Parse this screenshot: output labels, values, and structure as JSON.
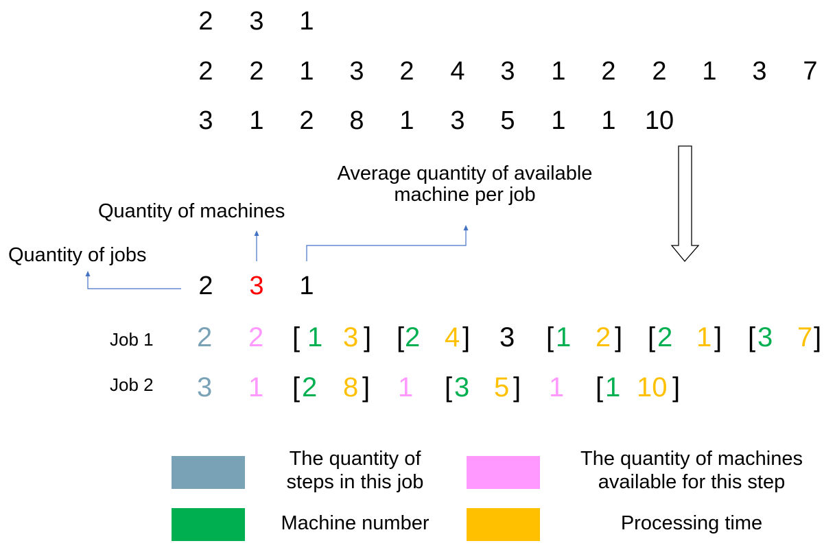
{
  "colors": {
    "steps": "#7aa2b7",
    "machines_available": "#ff99ff",
    "machine_number": "#00b050",
    "processing_time": "#ffc000",
    "highlight": "#ff0000",
    "arrow": "#4472c4"
  },
  "raw_input": {
    "line1": [
      "2",
      "3",
      "1"
    ],
    "line2": [
      "2",
      "2",
      "1",
      "3",
      "2",
      "4",
      "3",
      "1",
      "2",
      "2",
      "1",
      "3",
      "7"
    ],
    "line3": [
      "3",
      "1",
      "2",
      "8",
      "1",
      "3",
      "5",
      "1",
      "1",
      "10"
    ]
  },
  "annotations": {
    "jobs": "Quantity of jobs",
    "machines": "Quantity of machines",
    "avg_line1": "Average quantity of available",
    "avg_line2": "machine per job"
  },
  "header": [
    "2",
    "3",
    "1"
  ],
  "jobs": [
    {
      "label": "Job 1",
      "tokens": [
        {
          "t": "2",
          "c": "steps"
        },
        {
          "t": "2",
          "c": "machines_available"
        },
        {
          "t": "[",
          "c": "black"
        },
        {
          "t": "1",
          "c": "machine_number"
        },
        {
          "t": "3",
          "c": "processing_time"
        },
        {
          "t": "]",
          "c": "black"
        },
        {
          "t": "[",
          "c": "black"
        },
        {
          "t": "2",
          "c": "machine_number"
        },
        {
          "t": "4",
          "c": "processing_time"
        },
        {
          "t": "]",
          "c": "black"
        },
        {
          "t": "3",
          "c": "black"
        },
        {
          "t": "[",
          "c": "black"
        },
        {
          "t": "1",
          "c": "machine_number"
        },
        {
          "t": "2",
          "c": "processing_time"
        },
        {
          "t": "]",
          "c": "black"
        },
        {
          "t": "[",
          "c": "black"
        },
        {
          "t": "2",
          "c": "machine_number"
        },
        {
          "t": "1",
          "c": "processing_time"
        },
        {
          "t": "]",
          "c": "black"
        },
        {
          "t": "[",
          "c": "black"
        },
        {
          "t": "3",
          "c": "machine_number"
        },
        {
          "t": "7",
          "c": "processing_time"
        },
        {
          "t": "]",
          "c": "black"
        }
      ]
    },
    {
      "label": "Job 2",
      "tokens": [
        {
          "t": "3",
          "c": "steps"
        },
        {
          "t": "1",
          "c": "machines_available"
        },
        {
          "t": "[",
          "c": "black"
        },
        {
          "t": "2",
          "c": "machine_number"
        },
        {
          "t": "8",
          "c": "processing_time"
        },
        {
          "t": "]",
          "c": "black"
        },
        {
          "t": "1",
          "c": "machines_available"
        },
        {
          "t": "[",
          "c": "black"
        },
        {
          "t": "3",
          "c": "machine_number"
        },
        {
          "t": "5",
          "c": "processing_time"
        },
        {
          "t": "]",
          "c": "black"
        },
        {
          "t": "1",
          "c": "machines_available"
        },
        {
          "t": "[",
          "c": "black"
        },
        {
          "t": "1",
          "c": "machine_number"
        },
        {
          "t": "10",
          "c": "processing_time"
        },
        {
          "t": "]",
          "c": "black"
        }
      ]
    }
  ],
  "legend": {
    "steps_line1": "The quantity of",
    "steps_line2": "steps in this job",
    "machines_line1": "The quantity of machines",
    "machines_line2": "available for this step",
    "machine_number": "Machine number",
    "processing_time": "Processing time"
  }
}
